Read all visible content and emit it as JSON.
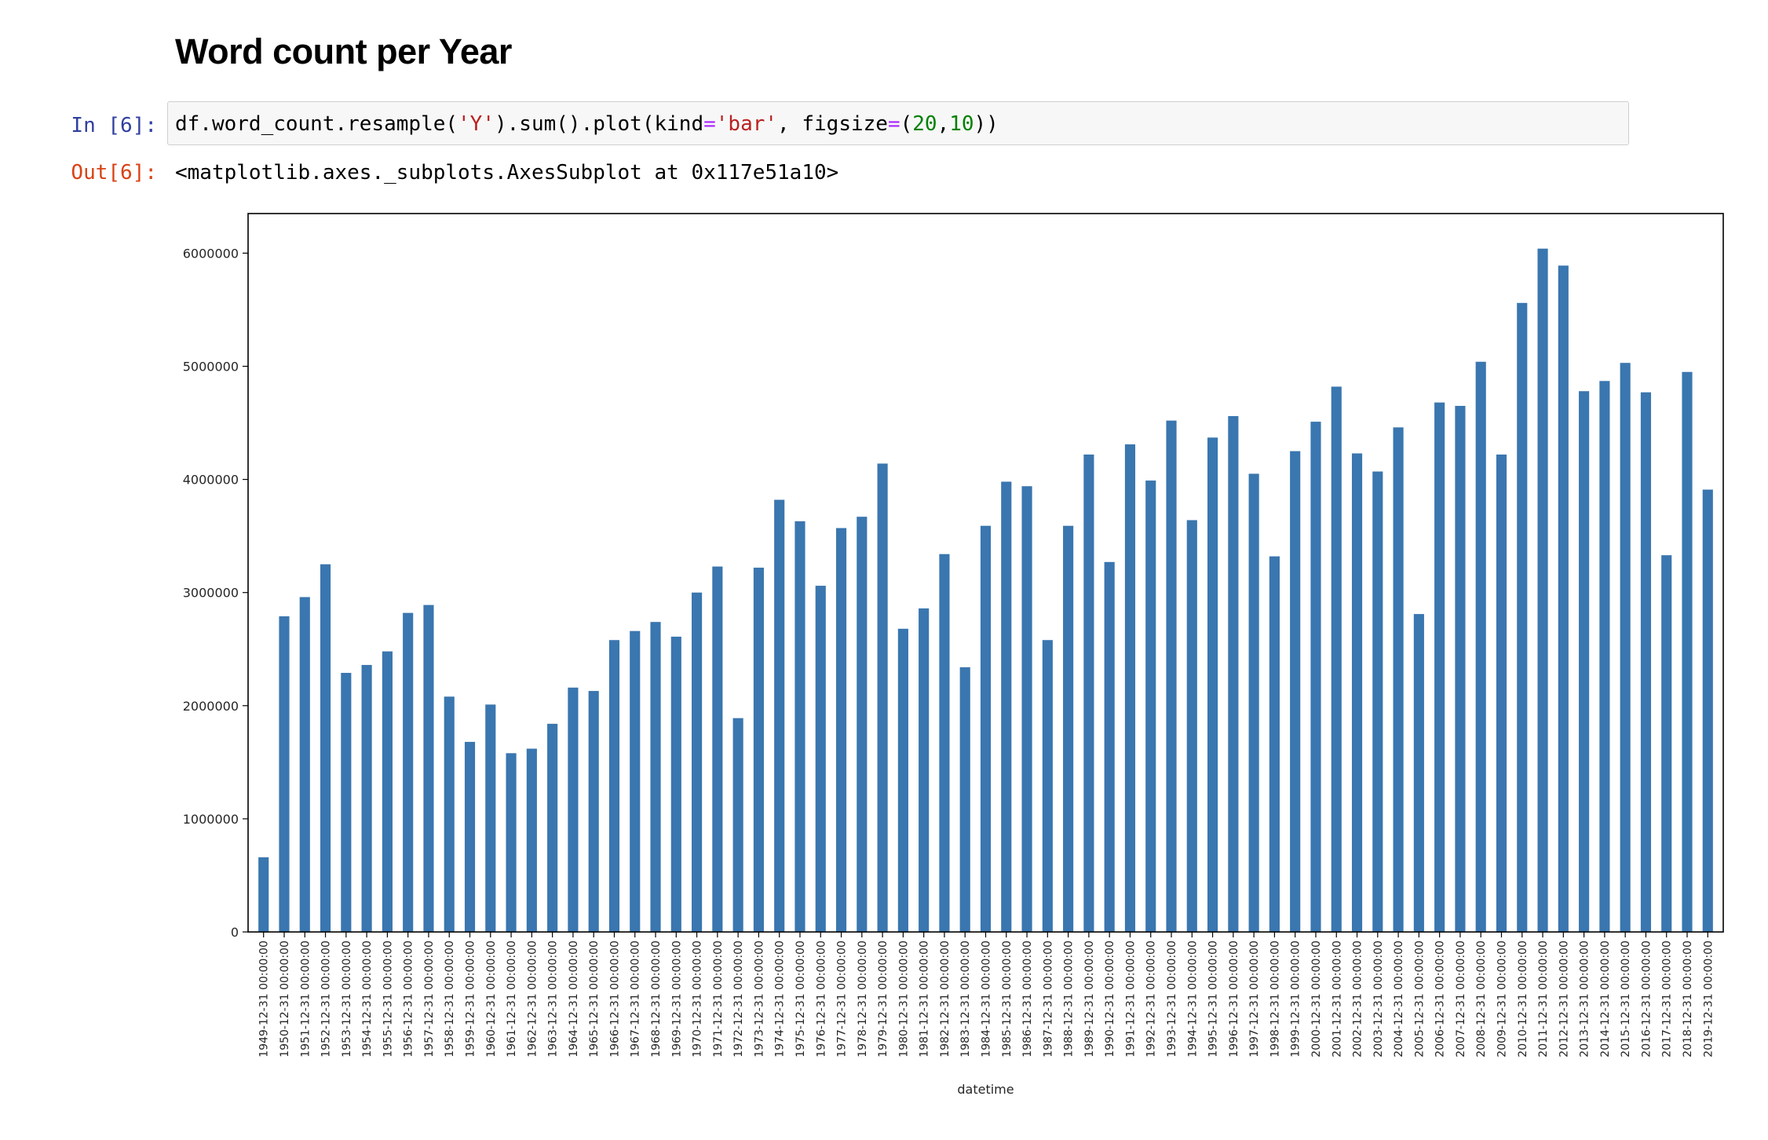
{
  "heading": "Word count per Year",
  "input_prompt": "In [6]:",
  "output_prompt": "Out[6]:",
  "code": {
    "p1": "df.word_count.resample(",
    "p2": "'Y'",
    "p3": ").sum().plot(kind",
    "p4": "=",
    "p5": "'bar'",
    "p6": ", figsize",
    "p7": "=",
    "p8": "(",
    "p9": "20",
    "p10": ",",
    "p11": "10",
    "p12": "))"
  },
  "output_text": "<matplotlib.axes._subplots.AxesSubplot at 0x117e51a10>",
  "colors": {
    "bar": "#3A76AF",
    "axis": "#000000",
    "text": "#262626"
  },
  "chart_data": {
    "type": "bar",
    "xlabel": "datetime",
    "ylabel": "",
    "ylim": [
      0,
      6350000
    ],
    "yticks": [
      {
        "value": 0,
        "label": "0"
      },
      {
        "value": 1000000,
        "label": "1000000"
      },
      {
        "value": 2000000,
        "label": "2000000"
      },
      {
        "value": 3000000,
        "label": "3000000"
      },
      {
        "value": 4000000,
        "label": "4000000"
      },
      {
        "value": 5000000,
        "label": "5000000"
      },
      {
        "value": 6000000,
        "label": "6000000"
      }
    ],
    "grid": false,
    "legend": "none",
    "categories": [
      "1949-12-31 00:00:00",
      "1950-12-31 00:00:00",
      "1951-12-31 00:00:00",
      "1952-12-31 00:00:00",
      "1953-12-31 00:00:00",
      "1954-12-31 00:00:00",
      "1955-12-31 00:00:00",
      "1956-12-31 00:00:00",
      "1957-12-31 00:00:00",
      "1958-12-31 00:00:00",
      "1959-12-31 00:00:00",
      "1960-12-31 00:00:00",
      "1961-12-31 00:00:00",
      "1962-12-31 00:00:00",
      "1963-12-31 00:00:00",
      "1964-12-31 00:00:00",
      "1965-12-31 00:00:00",
      "1966-12-31 00:00:00",
      "1967-12-31 00:00:00",
      "1968-12-31 00:00:00",
      "1969-12-31 00:00:00",
      "1970-12-31 00:00:00",
      "1971-12-31 00:00:00",
      "1972-12-31 00:00:00",
      "1973-12-31 00:00:00",
      "1974-12-31 00:00:00",
      "1975-12-31 00:00:00",
      "1976-12-31 00:00:00",
      "1977-12-31 00:00:00",
      "1978-12-31 00:00:00",
      "1979-12-31 00:00:00",
      "1980-12-31 00:00:00",
      "1981-12-31 00:00:00",
      "1982-12-31 00:00:00",
      "1983-12-31 00:00:00",
      "1984-12-31 00:00:00",
      "1985-12-31 00:00:00",
      "1986-12-31 00:00:00",
      "1987-12-31 00:00:00",
      "1988-12-31 00:00:00",
      "1989-12-31 00:00:00",
      "1990-12-31 00:00:00",
      "1991-12-31 00:00:00",
      "1992-12-31 00:00:00",
      "1993-12-31 00:00:00",
      "1994-12-31 00:00:00",
      "1995-12-31 00:00:00",
      "1996-12-31 00:00:00",
      "1997-12-31 00:00:00",
      "1998-12-31 00:00:00",
      "1999-12-31 00:00:00",
      "2000-12-31 00:00:00",
      "2001-12-31 00:00:00",
      "2002-12-31 00:00:00",
      "2003-12-31 00:00:00",
      "2004-12-31 00:00:00",
      "2005-12-31 00:00:00",
      "2006-12-31 00:00:00",
      "2007-12-31 00:00:00",
      "2008-12-31 00:00:00",
      "2009-12-31 00:00:00",
      "2010-12-31 00:00:00",
      "2011-12-31 00:00:00",
      "2012-12-31 00:00:00",
      "2013-12-31 00:00:00",
      "2014-12-31 00:00:00",
      "2015-12-31 00:00:00",
      "2016-12-31 00:00:00",
      "2017-12-31 00:00:00",
      "2018-12-31 00:00:00",
      "2019-12-31 00:00:00"
    ],
    "values": [
      660000,
      2790000,
      2960000,
      3250000,
      2290000,
      2360000,
      2480000,
      2820000,
      2890000,
      2080000,
      1680000,
      2010000,
      1580000,
      1620000,
      1840000,
      2160000,
      2130000,
      2580000,
      2660000,
      2740000,
      2610000,
      3000000,
      3230000,
      1890000,
      3220000,
      3820000,
      3630000,
      3060000,
      3570000,
      3670000,
      4140000,
      2680000,
      2860000,
      3340000,
      2340000,
      3590000,
      3980000,
      3940000,
      2580000,
      3590000,
      4220000,
      3270000,
      4310000,
      3990000,
      4520000,
      3640000,
      4370000,
      4560000,
      4050000,
      3320000,
      4250000,
      4510000,
      4820000,
      4230000,
      4070000,
      4460000,
      2810000,
      4680000,
      4650000,
      5040000,
      4220000,
      5560000,
      6040000,
      5890000,
      4780000,
      4870000,
      5030000,
      4770000,
      3330000,
      4950000,
      3910000
    ]
  }
}
